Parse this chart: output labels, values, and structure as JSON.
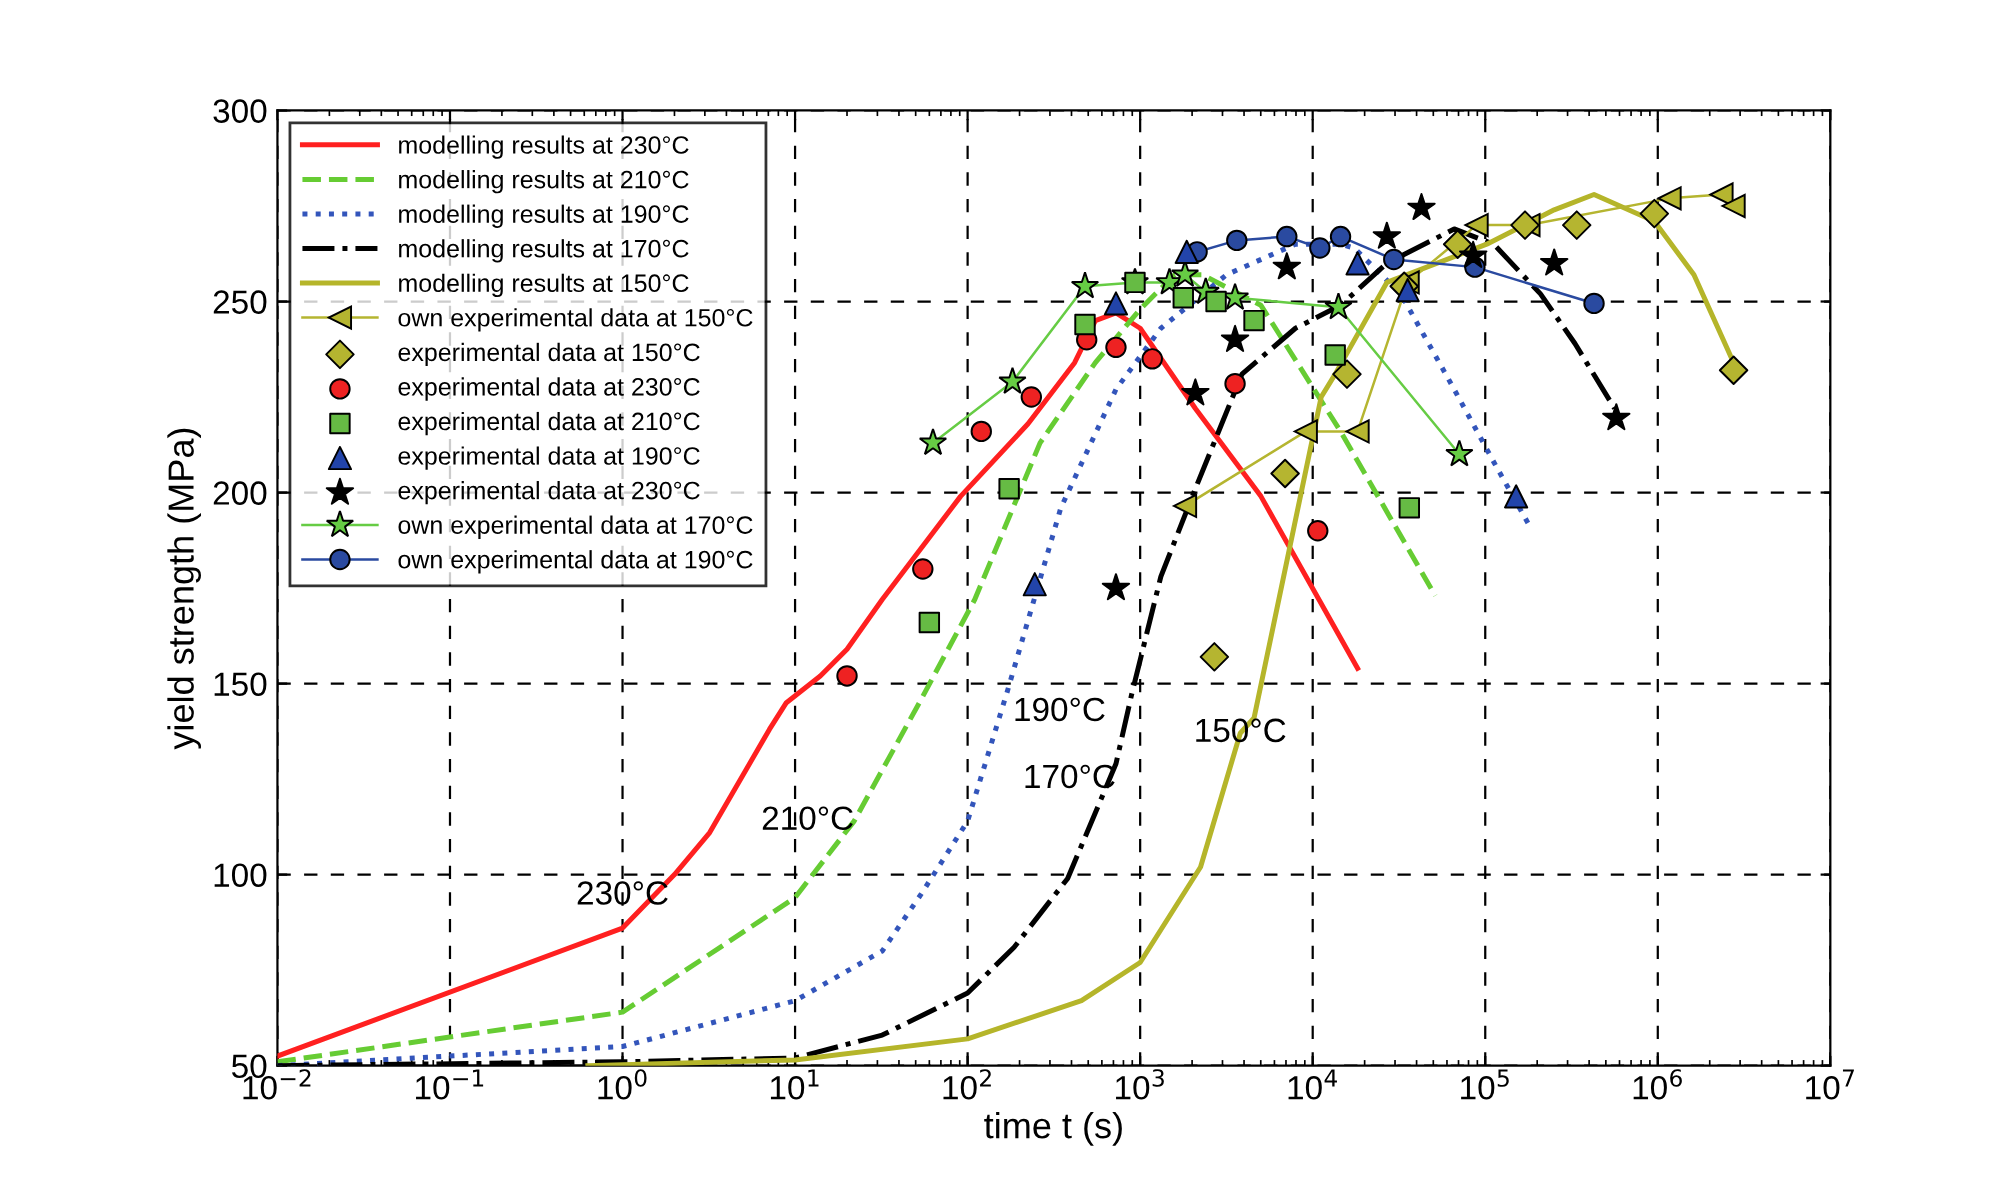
{
  "chart_data": {
    "type": "line",
    "xlabel": "time t (s)",
    "ylabel": "yield strength (MPa)",
    "log": "x",
    "xlim": [
      0.01,
      10000000
    ],
    "ylim": [
      50,
      300
    ],
    "xticks": [
      {
        "value": 0.01,
        "label": "10$^{−2}$"
      },
      {
        "value": 0.1,
        "label": "10$^{−1}$"
      },
      {
        "value": 1,
        "label": "10$^{0}$"
      },
      {
        "value": 10,
        "label": "10$^{1}$"
      },
      {
        "value": 100,
        "label": "10$^{2}$"
      },
      {
        "value": 1000,
        "label": "10$^{3}$"
      },
      {
        "value": 10000,
        "label": "10$^{4}$"
      },
      {
        "value": 100000,
        "label": "10$^{5}$"
      },
      {
        "value": 1000000,
        "label": "10$^{6}$"
      },
      {
        "value": 10000000,
        "label": "10$^{7}$"
      }
    ],
    "yticks": [
      50,
      100,
      150,
      200,
      250,
      300
    ],
    "grid": true,
    "legend": "top left",
    "annotations": [
      {
        "text": "230°C",
        "x": 1,
        "y": 86
      },
      {
        "text": "210°C",
        "x": 22,
        "y": 114
      },
      {
        "text": "190°C",
        "x": 170,
        "y": 148
      },
      {
        "text": "170°C",
        "x": 724,
        "y": 129
      },
      {
        "text": "150°C",
        "x": 3802,
        "y": 137
      }
    ],
    "series": [
      {
        "name": "modelling results at 230°C",
        "color": "#ff2020",
        "line_style": "solid",
        "marker": "none",
        "x": [
          0.01,
          1,
          2,
          3.2,
          7.1,
          8.9,
          14,
          20,
          32,
          91,
          224,
          417,
          550,
          724,
          1000,
          2089,
          5012,
          18200
        ],
        "values": [
          52.5,
          86,
          100,
          111,
          138,
          145,
          152,
          159,
          172,
          199,
          218,
          234,
          245,
          247,
          243,
          222,
          199,
          154
        ]
      },
      {
        "name": "modelling results at 210°C",
        "color": "#66cc33",
        "line_style": "dashed",
        "marker": "none",
        "x": [
          0.01,
          1,
          10,
          22,
          54,
          110,
          263,
          550,
          1000,
          1585,
          2291,
          5012,
          14500,
          51300
        ],
        "values": [
          51,
          64,
          94,
          114,
          146,
          172,
          213,
          234,
          248,
          257,
          257,
          249,
          216,
          173
        ]
      },
      {
        "name": "modelling results at 190°C",
        "color": "#3355bb",
        "line_style": "dotted",
        "marker": "none",
        "x": [
          0.01,
          1,
          10,
          32,
          54,
          100,
          170,
          347,
          724,
          1318,
          3162,
          7943,
          14500,
          17400,
          32400,
          66100,
          112000,
          182000
        ],
        "values": [
          50,
          55,
          67,
          80,
          95,
          114,
          148,
          196,
          227,
          243,
          257,
          265,
          265,
          264,
          252,
          227,
          208,
          191
        ]
      },
      {
        "name": "modelling results at 170°C",
        "color": "#000000",
        "line_style": "dashdot",
        "marker": "none",
        "x": [
          0.01,
          1,
          10,
          32,
          100,
          186,
          380,
          724,
          891,
          1318,
          2089,
          3890,
          7943,
          14500,
          26900,
          66100,
          112000,
          209000,
          331000,
          562000
        ],
        "values": [
          50,
          51,
          52,
          58,
          69,
          81,
          99,
          129,
          147,
          178,
          201,
          231,
          243,
          249,
          260,
          269,
          265,
          252,
          239,
          222
        ]
      },
      {
        "name": "modelling results at 150°C",
        "color": "#b5b52a",
        "line_style": "solid",
        "marker": "none",
        "x": [
          0.63,
          10,
          100,
          457,
          1000,
          2239,
          3802,
          4571,
          11200,
          13500,
          26900,
          102000,
          251000,
          427000,
          955000,
          1620000,
          2750000
        ],
        "values": [
          50,
          51.5,
          57,
          67,
          77,
          102,
          137,
          141,
          225,
          231,
          255,
          265,
          274,
          278,
          271,
          257,
          234
        ]
      },
      {
        "name": "own experimental data at 150°C",
        "color": "#b5b530",
        "line_style": "solid",
        "marker": "triangle_left",
        "x": [
          1820,
          9120,
          18200,
          35500,
          89100,
          178000,
          1170000,
          2340000,
          2750000
        ],
        "values": [
          196.5,
          216,
          216,
          255,
          270,
          270,
          277,
          278,
          275
        ]
      },
      {
        "name": "experimental data at 150°C",
        "type": "scatter",
        "color": "#b5b530",
        "marker": "diamond",
        "x": [
          2692,
          6918,
          15800,
          33900,
          69200,
          170000,
          339000,
          955000,
          2750000
        ],
        "values": [
          157,
          205,
          231,
          254,
          265,
          270,
          270,
          273,
          232
        ]
      },
      {
        "name": "experimental data at 230°C",
        "type": "scatter",
        "color": "#ee2222",
        "marker": "circle",
        "x": [
          20,
          55,
          120,
          234,
          490,
          724,
          1175,
          3548,
          10700
        ],
        "values": [
          152,
          180,
          216,
          225,
          240,
          238,
          235,
          228.5,
          190
        ]
      },
      {
        "name": "experimental data at 210°C",
        "type": "scatter",
        "color": "#66bb44",
        "marker": "square",
        "x": [
          60,
          174,
          479,
          933,
          1778,
          2754,
          4571,
          13500,
          36300
        ],
        "values": [
          166,
          201,
          244,
          255,
          251,
          250,
          245,
          236,
          196
        ]
      },
      {
        "name": "experimental data at 190°C",
        "type": "scatter",
        "color": "#2244aa",
        "marker": "triangle",
        "x": [
          245,
          724,
          1862,
          18200,
          35500,
          151000
        ],
        "values": [
          176,
          249.5,
          263,
          260,
          253,
          199
        ]
      },
      {
        "name": "experimental data at 230°C",
        "type": "scatter",
        "color": "#000000",
        "marker": "star",
        "x": [
          724,
          2089,
          3548,
          7079,
          26900,
          42700,
          85100,
          251000,
          575000
        ],
        "values": [
          175,
          226,
          240,
          259,
          267,
          274.5,
          262,
          260,
          219.5
        ]
      },
      {
        "name": "own experimental data at 170°C",
        "color": "#66cc44",
        "line_style": "solid",
        "marker": "star",
        "x": [
          63,
          182,
          479,
          933,
          1479,
          1820,
          2399,
          3548,
          14100,
          70800
        ],
        "values": [
          213,
          229,
          254,
          255,
          255,
          257,
          252.5,
          251,
          248.5,
          210
        ]
      },
      {
        "name": "own experimental data at 190°C",
        "color": "#2a4aa0",
        "line_style": "solid",
        "marker": "circle",
        "x": [
          2138,
          3631,
          7079,
          11000,
          14500,
          29500,
          87100,
          427000
        ],
        "values": [
          263,
          266,
          267,
          264,
          267,
          261,
          259,
          249.5
        ]
      }
    ]
  }
}
